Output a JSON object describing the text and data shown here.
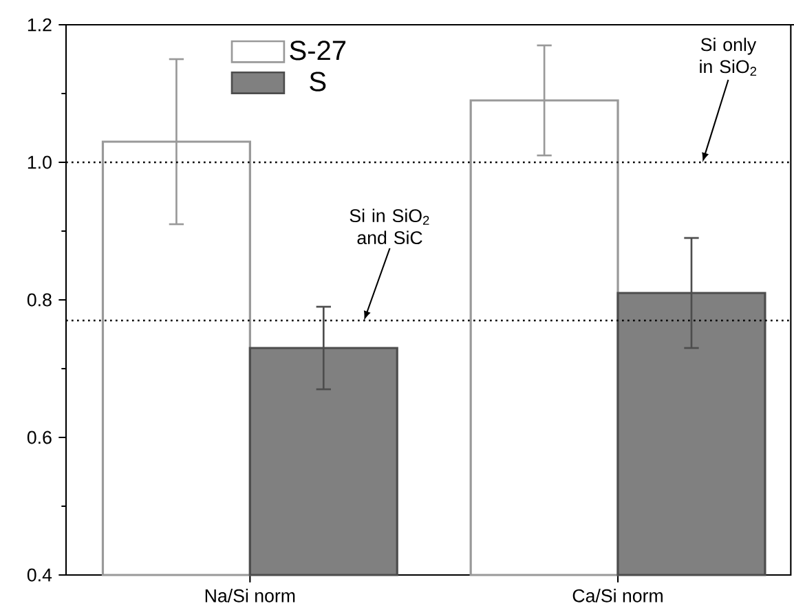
{
  "chart_data": {
    "type": "bar",
    "categories": [
      "Na/Si norm",
      "Ca/Si norm"
    ],
    "series": [
      {
        "name": "S-27",
        "color": "#ffffff",
        "values": [
          1.03,
          1.09
        ],
        "errors": [
          0.12,
          0.08
        ]
      },
      {
        "name": "S",
        "color": "#808080",
        "values": [
          0.73,
          0.81
        ],
        "errors": [
          0.06,
          0.08
        ]
      }
    ],
    "ylim": [
      0.4,
      1.2
    ],
    "yticks": [
      0.4,
      {
        "value": 0.5,
        "label": null
      },
      0.6,
      {
        "value": 0.7,
        "label": null
      },
      0.8,
      {
        "value": 0.9,
        "label": null
      },
      {
        "value": 1.0,
        "label": "1.0"
      },
      {
        "value": 1.1,
        "label": null
      },
      1.2
    ],
    "ref_lines": [
      {
        "axis": "y",
        "value": 1.0,
        "label": "Si only in SiO$_{2}$",
        "line_style": "dotted",
        "color": "#000000"
      },
      {
        "axis": "y",
        "value": 0.77,
        "label": "Si in SiO$_{2}$ and SiC",
        "line_style": "dotted",
        "color": "#000000"
      }
    ],
    "legend": "top"
  }
}
